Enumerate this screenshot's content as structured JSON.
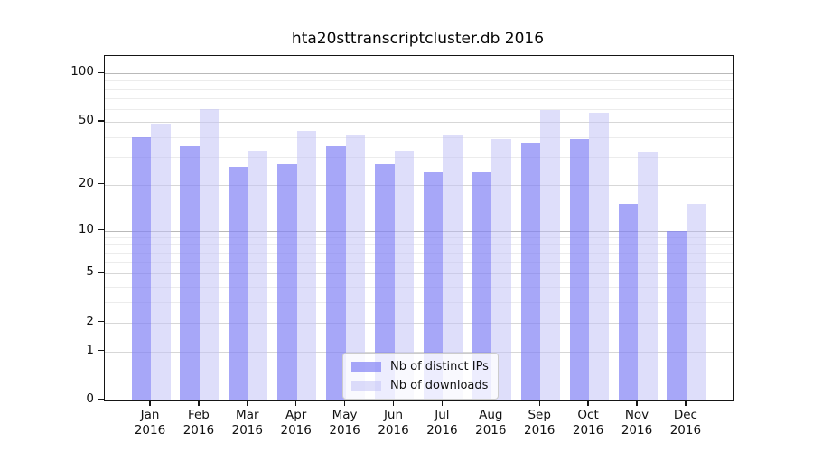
{
  "title": "hta20sttranscriptcluster.db 2016",
  "chart_data": {
    "type": "bar",
    "title": "hta20sttranscriptcluster.db 2016",
    "year": "2016",
    "months": [
      "Jan",
      "Feb",
      "Mar",
      "Apr",
      "May",
      "Jun",
      "Jul",
      "Aug",
      "Sep",
      "Oct",
      "Nov",
      "Dec"
    ],
    "categories": [
      "Jan 2016",
      "Feb 2016",
      "Mar 2016",
      "Apr 2016",
      "May 2016",
      "Jun 2016",
      "Jul 2016",
      "Aug 2016",
      "Sep 2016",
      "Oct 2016",
      "Nov 2016",
      "Dec 2016"
    ],
    "series": [
      {
        "name": "Nb of distinct IPs",
        "color": "rgba(130,130,245,0.70)",
        "values": [
          40,
          35,
          26,
          27,
          35,
          27,
          24,
          24,
          37,
          39,
          15,
          10
        ]
      },
      {
        "name": "Nb of downloads",
        "color": "rgba(195,195,246,0.55)",
        "values": [
          49,
          60,
          33,
          44,
          41,
          33,
          41,
          39,
          59,
          57,
          32,
          15
        ]
      }
    ],
    "y_axis": {
      "scale": "log10(1+value)",
      "tick_values": [
        100,
        50,
        20,
        10,
        5,
        2,
        1,
        0
      ],
      "power_gridlines": [
        10,
        100
      ],
      "minor_gridlines": [
        3,
        4,
        6,
        7,
        8,
        9,
        30,
        40,
        60,
        70,
        80,
        90
      ],
      "ylim": [
        0,
        130
      ]
    },
    "legend": {
      "position": "lower center"
    },
    "grid": "on"
  }
}
